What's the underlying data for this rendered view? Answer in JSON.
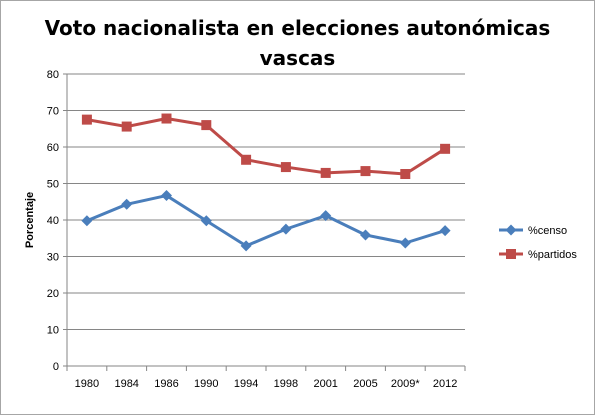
{
  "chart_data": {
    "type": "line",
    "title_line1": "Voto nacionalista en elecciones autonómicas",
    "title_line2": "vascas",
    "xlabel": "",
    "ylabel": "Porcentaje",
    "categories": [
      "1980",
      "1984",
      "1986",
      "1990",
      "1994",
      "1998",
      "2001",
      "2005",
      "2009*",
      "2012"
    ],
    "ylim": [
      0,
      80
    ],
    "yticks": [
      "0",
      "10",
      "20",
      "30",
      "40",
      "50",
      "60",
      "70",
      "80"
    ],
    "grid": true,
    "legend_position": "right",
    "series": [
      {
        "name": "%censo",
        "color": "#4a7ebb",
        "marker": "diamond",
        "values": [
          39.8,
          44.3,
          46.7,
          39.8,
          32.9,
          37.5,
          41.2,
          35.9,
          33.7,
          37.1
        ]
      },
      {
        "name": "%partidos",
        "color": "#be4b48",
        "marker": "square",
        "values": [
          67.5,
          65.6,
          67.8,
          66.0,
          56.5,
          54.5,
          52.9,
          53.4,
          52.6,
          59.5
        ]
      }
    ]
  }
}
